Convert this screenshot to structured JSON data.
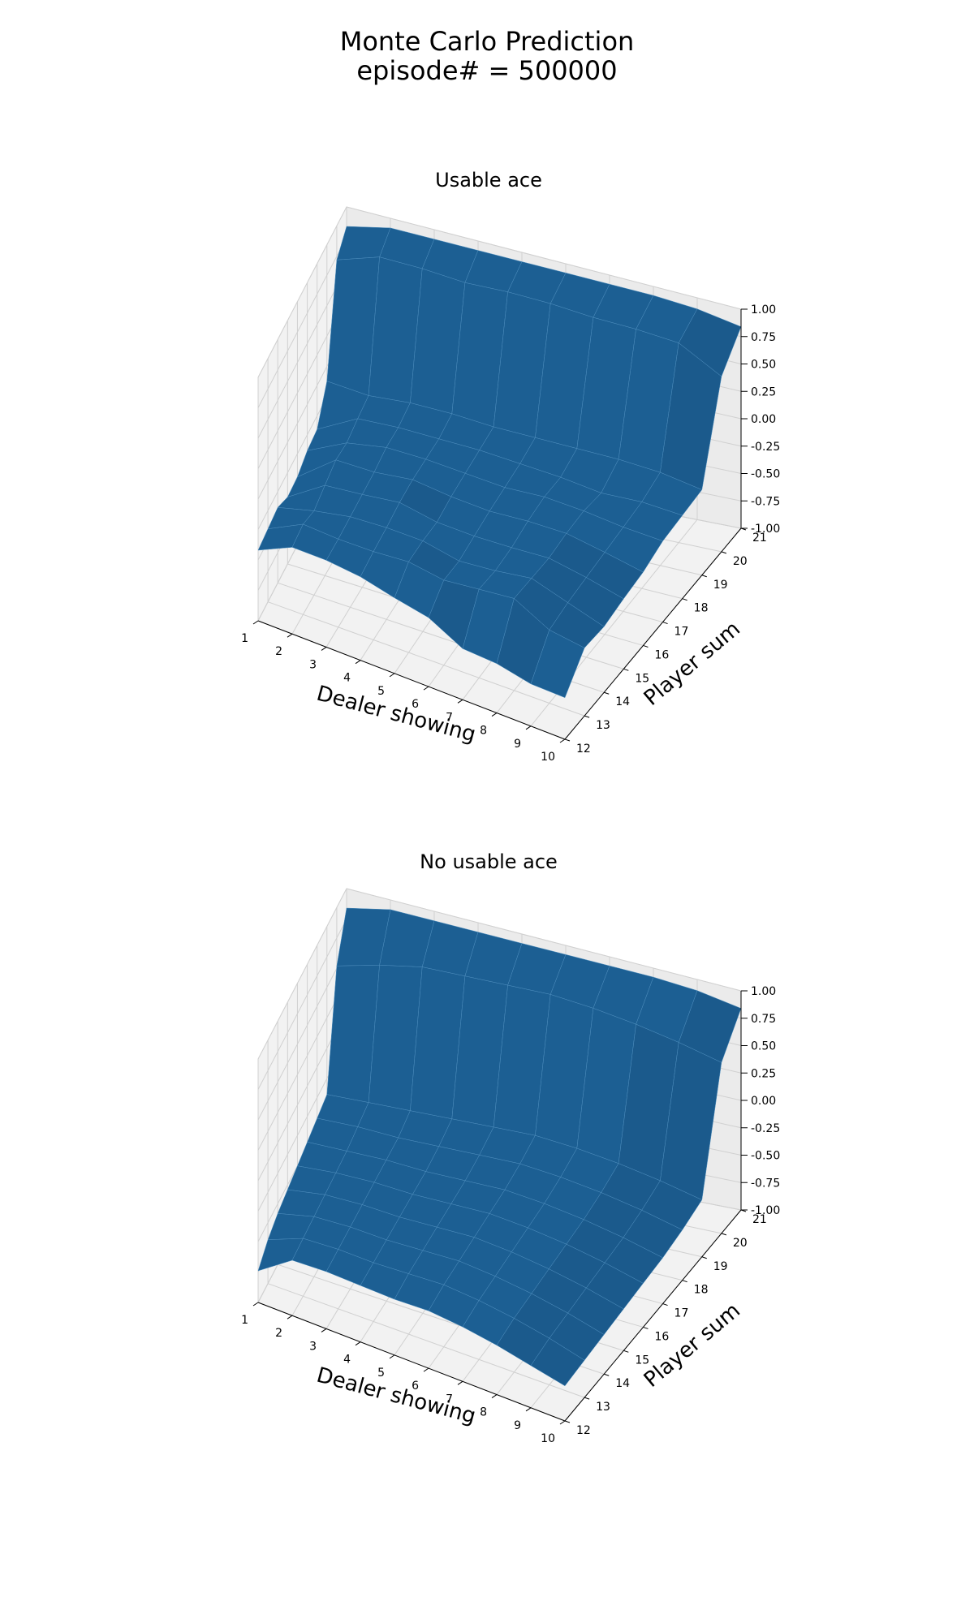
{
  "figure": {
    "title_line1": "Monte Carlo Prediction",
    "title_line2": "episode# = 500000"
  },
  "colors": {
    "surface": "#1f6aa5",
    "pane": "#f2f2f2",
    "grid": "#d0d0d0",
    "axis": "#000000"
  },
  "chart_data": [
    {
      "type": "surface3d",
      "title": "Usable ace",
      "xlabel": "Dealer showing",
      "ylabel": "Player sum",
      "zlabel": "",
      "x": [
        1,
        2,
        3,
        4,
        5,
        6,
        7,
        8,
        9,
        10
      ],
      "y": [
        12,
        13,
        14,
        15,
        16,
        17,
        18,
        19,
        20,
        21
      ],
      "zlim": [
        -1.0,
        1.0
      ],
      "x_ticks": [
        "1",
        "2",
        "3",
        "4",
        "5",
        "6",
        "7",
        "8",
        "9",
        "10"
      ],
      "y_ticks": [
        "12",
        "13",
        "14",
        "15",
        "16",
        "17",
        "18",
        "19",
        "20",
        "21"
      ],
      "z_ticks": [
        "1.00",
        "0.75",
        "0.50",
        "0.25",
        "0.00",
        "-0.25",
        "-0.50",
        "-0.75",
        "-1.00"
      ],
      "z": [
        [
          -0.42,
          -0.4,
          -0.38,
          -0.45,
          -0.44,
          -0.38,
          -0.36,
          -0.12,
          0.72,
          0.84
        ],
        [
          -0.28,
          -0.25,
          -0.3,
          -0.25,
          -0.2,
          -0.22,
          -0.18,
          -0.15,
          0.84,
          0.92
        ],
        [
          -0.27,
          -0.26,
          -0.24,
          -0.22,
          -0.2,
          -0.16,
          -0.16,
          -0.12,
          0.84,
          0.92
        ],
        [
          -0.29,
          -0.25,
          -0.22,
          -0.18,
          -0.16,
          -0.16,
          -0.16,
          -0.12,
          0.82,
          0.92
        ],
        [
          -0.35,
          -0.22,
          -0.22,
          -0.24,
          -0.2,
          -0.18,
          -0.16,
          -0.14,
          0.84,
          0.92
        ],
        [
          -0.4,
          -0.26,
          -0.28,
          -0.25,
          -0.22,
          -0.2,
          -0.18,
          -0.14,
          0.84,
          0.92
        ],
        [
          -0.55,
          -0.22,
          -0.25,
          -0.24,
          -0.2,
          -0.18,
          -0.2,
          -0.14,
          0.82,
          0.92
        ],
        [
          -0.56,
          -0.18,
          -0.2,
          -0.22,
          -0.2,
          -0.2,
          -0.24,
          -0.14,
          0.82,
          0.92
        ],
        [
          -0.62,
          -0.34,
          -0.3,
          -0.28,
          -0.26,
          -0.24,
          -0.22,
          -0.16,
          0.8,
          0.9
        ],
        [
          -0.62,
          -0.38,
          -0.4,
          -0.36,
          -0.33,
          -0.26,
          -0.24,
          -0.22,
          0.6,
          0.84
        ]
      ]
    },
    {
      "type": "surface3d",
      "title": "No usable ace",
      "xlabel": "Dealer showing",
      "ylabel": "Player sum",
      "zlabel": "",
      "x": [
        1,
        2,
        3,
        4,
        5,
        6,
        7,
        8,
        9,
        10
      ],
      "y": [
        12,
        13,
        14,
        15,
        16,
        17,
        18,
        19,
        20,
        21
      ],
      "zlim": [
        -1.0,
        1.0
      ],
      "x_ticks": [
        "1",
        "2",
        "3",
        "4",
        "5",
        "6",
        "7",
        "8",
        "9",
        "10"
      ],
      "y_ticks": [
        "12",
        "13",
        "14",
        "15",
        "16",
        "17",
        "18",
        "19",
        "20",
        "21"
      ],
      "z_ticks": [
        "1.00",
        "0.75",
        "0.50",
        "0.25",
        "0.00",
        "-0.25",
        "-0.50",
        "-0.75",
        "-1.00"
      ],
      "z": [
        [
          -0.74,
          -0.64,
          -0.58,
          -0.54,
          -0.5,
          -0.46,
          -0.42,
          -0.38,
          0.52,
          0.84
        ],
        [
          -0.54,
          -0.52,
          -0.5,
          -0.48,
          -0.46,
          -0.44,
          -0.4,
          -0.36,
          0.62,
          0.92
        ],
        [
          -0.52,
          -0.5,
          -0.48,
          -0.46,
          -0.44,
          -0.42,
          -0.4,
          -0.34,
          0.7,
          0.92
        ],
        [
          -0.52,
          -0.5,
          -0.48,
          -0.46,
          -0.44,
          -0.42,
          -0.38,
          -0.32,
          0.72,
          0.92
        ],
        [
          -0.52,
          -0.48,
          -0.46,
          -0.44,
          -0.42,
          -0.4,
          -0.36,
          -0.3,
          0.74,
          0.92
        ],
        [
          -0.5,
          -0.46,
          -0.44,
          -0.42,
          -0.4,
          -0.38,
          -0.34,
          -0.28,
          0.76,
          0.92
        ],
        [
          -0.52,
          -0.48,
          -0.46,
          -0.44,
          -0.42,
          -0.4,
          -0.36,
          -0.3,
          0.74,
          0.92
        ],
        [
          -0.56,
          -0.52,
          -0.5,
          -0.48,
          -0.46,
          -0.44,
          -0.4,
          -0.34,
          0.7,
          0.92
        ],
        [
          -0.62,
          -0.58,
          -0.56,
          -0.54,
          -0.52,
          -0.5,
          -0.46,
          -0.4,
          0.64,
          0.9
        ],
        [
          -0.68,
          -0.66,
          -0.64,
          -0.62,
          -0.6,
          -0.58,
          -0.54,
          -0.48,
          0.56,
          0.84
        ]
      ]
    }
  ]
}
